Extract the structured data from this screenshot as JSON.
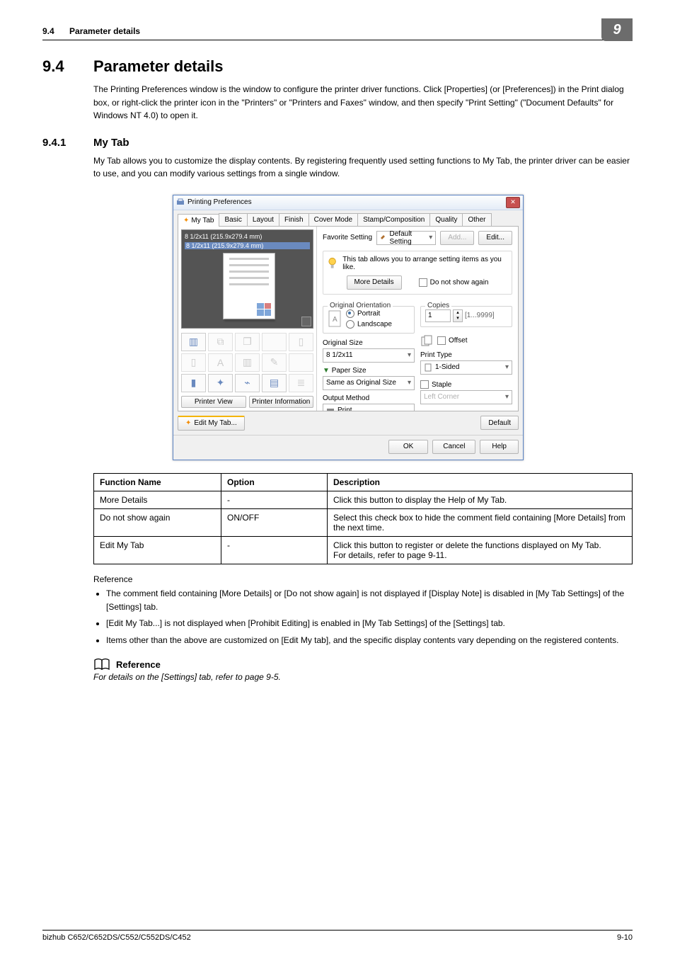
{
  "header": {
    "section_num": "9.4",
    "section_label": "Parameter details",
    "chapter_badge": "9"
  },
  "h1": {
    "num": "9.4",
    "title": "Parameter details"
  },
  "intro": "The Printing Preferences window is the window to configure the printer driver functions. Click [Properties] (or [Preferences]) in the Print dialog box, or right-click the printer icon in the \"Printers\" or \"Printers and Faxes\" window, and then specify \"Print Setting\" (\"Document Defaults\" for Windows NT 4.0) to open it.",
  "h2": {
    "num": "9.4.1",
    "title": "My Tab"
  },
  "subintro": "My Tab allows you to customize the display contents. By registering frequently used setting functions to My Tab, the printer driver can be easier to use, and you can modify various settings from a single window.",
  "dlg": {
    "title": "Printing Preferences",
    "tabs": [
      "My Tab",
      "Basic",
      "Layout",
      "Finish",
      "Cover Mode",
      "Stamp/Composition",
      "Quality",
      "Other"
    ],
    "size1": "8 1/2x11 (215.9x279.4 mm)",
    "size2": "8 1/2x11 (215.9x279.4 mm)",
    "printer_view": "Printer View",
    "printer_info": "Printer Information",
    "fav_label": "Favorite Setting",
    "fav_value": "Default Setting",
    "add": "Add...",
    "edit": "Edit...",
    "hint": "This tab allows you to arrange setting items as you like.",
    "more": "More Details",
    "dns": "Do not show again",
    "orient_title": "Original Orientation",
    "portrait": "Portrait",
    "landscape": "Landscape",
    "copies_title": "Copies",
    "copies_val": "1",
    "copies_range": "[1...9999]",
    "offset": "Offset",
    "orig_size_label": "Original Size",
    "orig_size_val": "8 1/2x11",
    "paper_size_label": "Paper Size",
    "paper_size_val": "Same as Original Size",
    "print_type_label": "Print Type",
    "print_type_val": "1-Sided",
    "out_label": "Output Method",
    "out_val": "Print",
    "staple": "Staple",
    "staple_pos": "Left Corner",
    "edit_tab": "Edit My Tab...",
    "default": "Default",
    "ok": "OK",
    "cancel": "Cancel",
    "help": "Help"
  },
  "table": {
    "head": [
      "Function Name",
      "Option",
      "Description"
    ],
    "rows": [
      [
        "More Details",
        "-",
        "Click this button to display the Help of My Tab."
      ],
      [
        "Do not show again",
        "ON/OFF",
        "Select this check box to hide the comment field containing [More Details] from the next time."
      ],
      [
        "Edit My Tab",
        "-",
        "Click this button to register or delete the functions displayed on My Tab.\nFor details, refer to page 9-11."
      ]
    ]
  },
  "reference_label": "Reference",
  "bullets": [
    "The comment field containing [More Details] or [Do not show again] is not displayed if [Display Note] is disabled in [My Tab Settings] of the [Settings] tab.",
    "[Edit My Tab...] is not displayed when [Prohibit Editing] is enabled in [My Tab Settings] of the [Settings] tab.",
    "Items other than the above are customized on [Edit My tab], and the specific display contents vary depending on the registered contents."
  ],
  "ref_title": "Reference",
  "ref_line": "For details on the [Settings] tab, refer to page 9-5.",
  "footer": {
    "left": "bizhub C652/C652DS/C552/C552DS/C452",
    "right": "9-10"
  }
}
